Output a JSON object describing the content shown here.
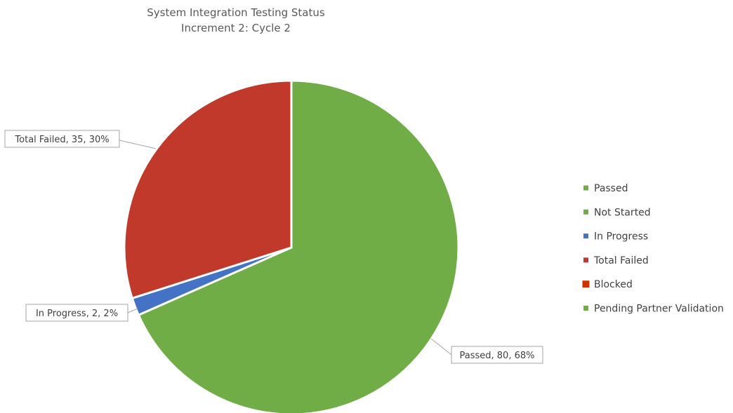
{
  "chart_data": {
    "type": "pie",
    "title": [
      "System Integration Testing Status",
      "Increment 2: Cycle 2"
    ],
    "legend_position": "right",
    "slices": [
      {
        "label": "Passed",
        "value": 80,
        "percent": 68,
        "color": "#70ad47",
        "data_label": "Passed, 80, 68%"
      },
      {
        "label": "Not Started",
        "value": 0,
        "percent": 0,
        "color": "#70ad47",
        "data_label": ""
      },
      {
        "label": "In Progress",
        "value": 2,
        "percent": 2,
        "color": "#4472c4",
        "data_label": "In Progress, 2, 2%"
      },
      {
        "label": "Total Failed",
        "value": 35,
        "percent": 30,
        "color": "#c0392b",
        "data_label": "Total Failed, 35, 30%"
      },
      {
        "label": "Blocked",
        "value": 0,
        "percent": 0,
        "color": "#cc3300",
        "data_label": ""
      },
      {
        "label": "Pending Partner Validation",
        "value": 0,
        "percent": 0,
        "color": "#70ad47",
        "data_label": ""
      }
    ]
  }
}
